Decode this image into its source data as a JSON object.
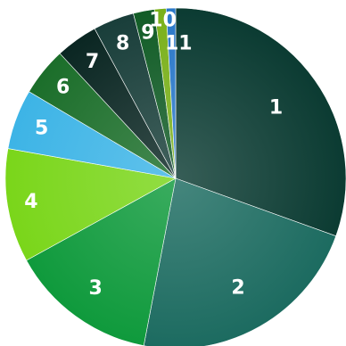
{
  "chart_data": {
    "type": "pie",
    "title": "",
    "labels": [
      "1",
      "2",
      "3",
      "4",
      "5",
      "6",
      "7",
      "8",
      "9",
      "10",
      "11"
    ],
    "values": [
      30.5,
      22.5,
      14.0,
      10.8,
      5.7,
      4.6,
      4.0,
      3.9,
      2.0,
      1.1,
      0.9
    ],
    "colors": [
      "#0b3b32",
      "#1c6b60",
      "#0f9a3c",
      "#7ad61a",
      "#3db4e6",
      "#1b6e2a",
      "#0a2622",
      "#193e3a",
      "#115c26",
      "#7ab01a",
      "#2a78c8"
    ],
    "start_angle_deg": 0,
    "direction": "clockwise",
    "legend": "none",
    "grid": false
  }
}
